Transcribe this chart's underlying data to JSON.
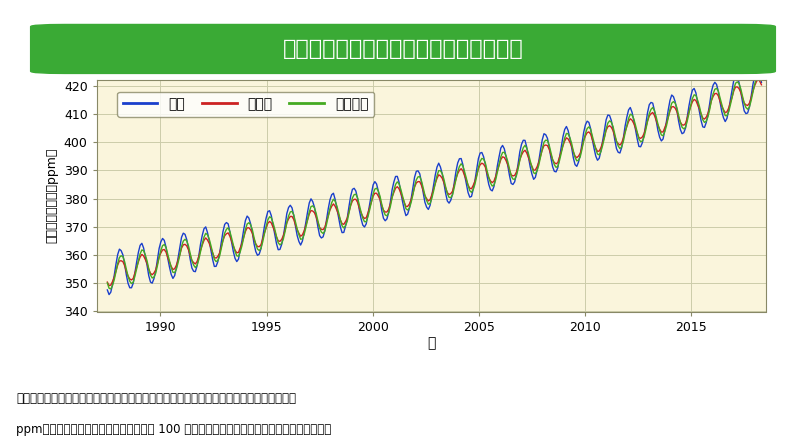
{
  "title": "国内の大気中二酸化炭素濃度の経年変化",
  "title_bg_color": "#3aaa35",
  "title_text_color": "#ffffff",
  "plot_bg_color": "#faf5dc",
  "fig_bg_color": "#ffffff",
  "xlabel": "年",
  "ylabel": "二酸化炭素濃度（ppm）",
  "xlim": [
    1987.0,
    2018.5
  ],
  "ylim": [
    340,
    422
  ],
  "yticks": [
    340,
    350,
    360,
    370,
    380,
    390,
    400,
    410,
    420
  ],
  "xticks": [
    1990,
    1995,
    2000,
    2005,
    2010,
    2015
  ],
  "grid_color": "#ccccaa",
  "stations": [
    "綾里",
    "南鳥島",
    "与那国島"
  ],
  "colors": [
    "#1a3fcc",
    "#cc2222",
    "#44aa22"
  ],
  "line_width": 1.0,
  "start_year": 1987.5,
  "end_year": 2018.3,
  "n_points": 380,
  "caption_line1": "気象庁が綾里、南鳥島、与那国島で観測した大気中の二酸化炭素月平均濃度の経年変化。",
  "caption_line2": "ppm（ピーピーエム）は、大気中の分子 100 万個中にある対象物質の個数を表す単位です。"
}
